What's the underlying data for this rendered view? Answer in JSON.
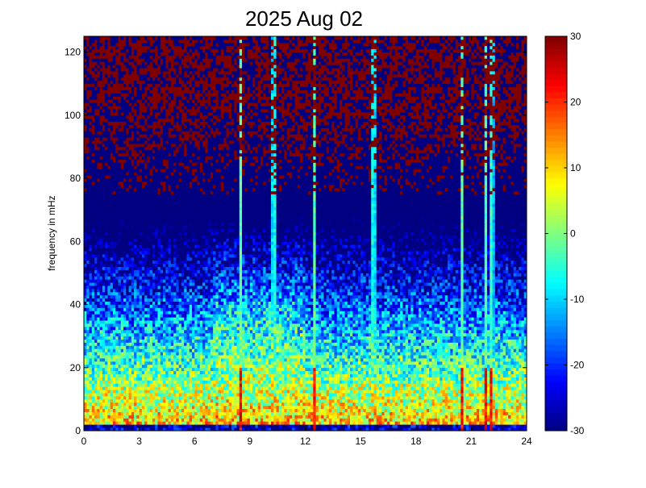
{
  "chart_data": {
    "type": "heatmap",
    "title": "2025 Aug 02",
    "xlabel": "",
    "ylabel": "frequency in mHz",
    "xlim": [
      0,
      24
    ],
    "ylim": [
      0,
      125
    ],
    "x_ticks": [
      "0",
      "3",
      "6",
      "9",
      "12",
      "15",
      "18",
      "21",
      "24"
    ],
    "y_ticks": [
      "0",
      "20",
      "40",
      "60",
      "80",
      "100",
      "120"
    ],
    "colorbar": {
      "range": [
        -30,
        30
      ],
      "ticks": [
        "-30",
        "-20",
        "-10",
        "0",
        "10",
        "20",
        "30"
      ],
      "colormap": "jet"
    },
    "grid": false,
    "legend": "none",
    "columns": 168,
    "rows": 125,
    "features": {
      "low_freq_band_peak_mhz": [
        2,
        16
      ],
      "bright_band_hours": [
        7,
        12
      ],
      "vertical_lines_hours": [
        8.5,
        10.3,
        12.5,
        15.7,
        20.5,
        21.8,
        22.1
      ]
    }
  }
}
